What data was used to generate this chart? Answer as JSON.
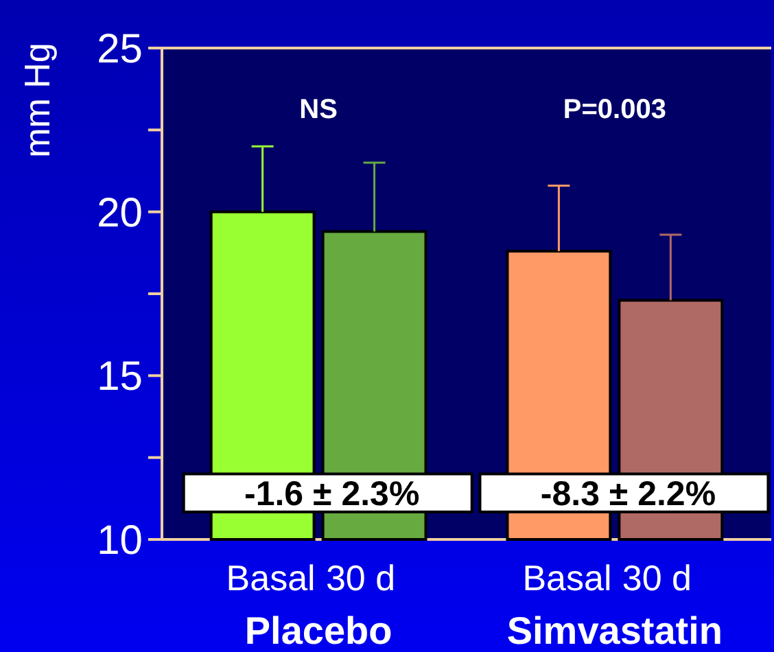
{
  "chart_data": {
    "type": "bar",
    "ylabel": "mm Hg",
    "categories": [
      "Basal",
      "30 d",
      "Basal",
      "30 d"
    ],
    "values": [
      20.0,
      19.4,
      18.8,
      17.3
    ],
    "colors": [
      "#99ff33",
      "#66aa40",
      "#ff9966",
      "#b06a66"
    ],
    "errors": [
      [
        20.0,
        22.0
      ],
      [
        19.4,
        21.5
      ],
      [
        18.8,
        20.8
      ],
      [
        17.3,
        19.3
      ]
    ],
    "ylim": [
      10,
      25
    ],
    "yticks": [
      10,
      {
        "value": 12.5,
        "label": null
      },
      15,
      {
        "value": 17.5,
        "label": null
      },
      20,
      {
        "value": 22.5,
        "label": null
      },
      25
    ],
    "annotations": [
      "NS",
      "P=0.003",
      "-1.6 ± 2.3%",
      "-8.3 ± 2.2%",
      "Placebo",
      "Simvastatin"
    ],
    "grid": false
  }
}
